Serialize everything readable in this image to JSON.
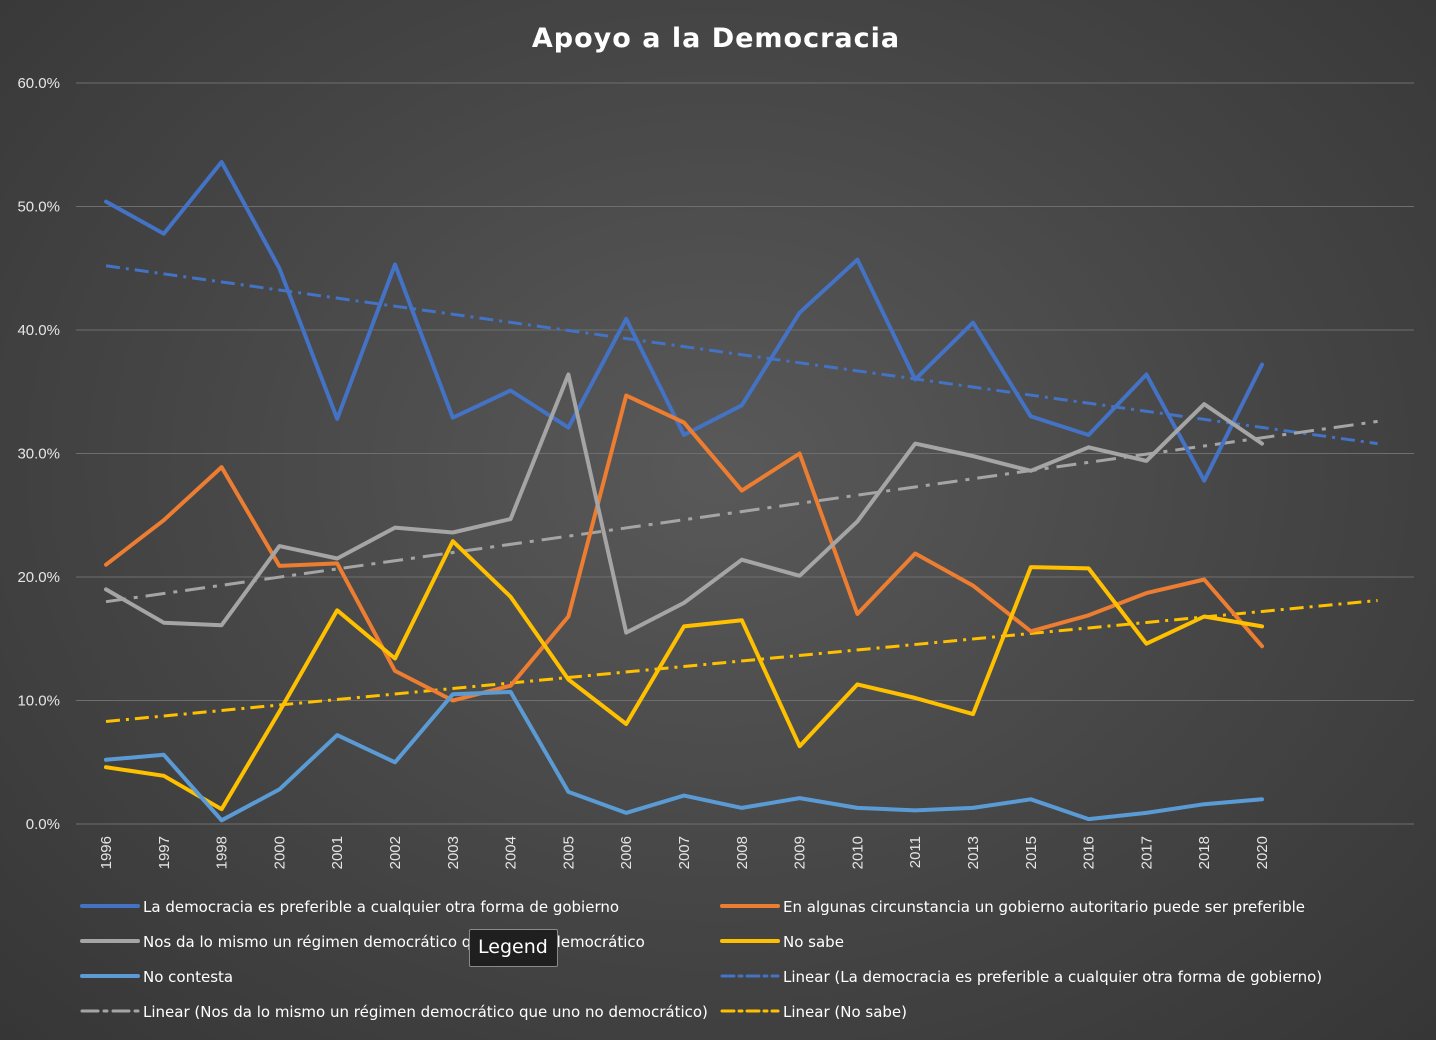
{
  "chart_data": {
    "type": "line",
    "title": "Apoyo a la Democracia",
    "x": [
      "1996",
      "1997",
      "1998",
      "2000",
      "2001",
      "2002",
      "2003",
      "2004",
      "2005",
      "2006",
      "2007",
      "2008",
      "2009",
      "2010",
      "2011",
      "2013",
      "2015",
      "2016",
      "2017",
      "2018",
      "2020"
    ],
    "y_ticks": [
      "0.0%",
      "10.0%",
      "20.0%",
      "30.0%",
      "40.0%",
      "50.0%",
      "60.0%"
    ],
    "ylim": [
      0,
      60
    ],
    "grid": true,
    "legend_position": "bottom",
    "series": [
      {
        "name": "La democracia es preferible a cualquier otra forma de gobierno",
        "color": "#4472C4",
        "values": [
          50.4,
          47.8,
          53.6,
          45.0,
          32.8,
          45.3,
          32.9,
          35.1,
          32.1,
          40.9,
          31.5,
          33.9,
          41.4,
          45.7,
          36.0,
          40.6,
          33.0,
          31.5,
          36.4,
          27.8,
          37.2
        ]
      },
      {
        "name": "En algunas circunstancia un gobierno autoritario puede ser preferible",
        "color": "#ED7D31",
        "values": [
          21.0,
          24.6,
          28.9,
          20.9,
          21.1,
          12.4,
          10.0,
          11.2,
          16.8,
          34.7,
          32.5,
          27.0,
          30.0,
          17.0,
          21.9,
          19.3,
          15.6,
          16.9,
          18.7,
          19.8,
          14.4
        ]
      },
      {
        "name": "Nos da lo mismo un régimen democrático que uno no democrático",
        "color": "#A5A5A5",
        "values": [
          19.0,
          16.3,
          16.1,
          22.5,
          21.5,
          24.0,
          23.6,
          24.7,
          36.4,
          15.5,
          17.9,
          21.4,
          20.1,
          24.5,
          30.8,
          29.8,
          28.6,
          30.5,
          29.4,
          34.0,
          30.8
        ]
      },
      {
        "name": "No sabe",
        "color": "#FFC000",
        "values": [
          4.6,
          3.9,
          1.2,
          9.1,
          17.3,
          13.4,
          22.9,
          18.4,
          11.7,
          8.1,
          16.0,
          16.5,
          6.3,
          11.3,
          10.2,
          8.9,
          20.8,
          20.7,
          14.6,
          16.8,
          16.0
        ]
      },
      {
        "name": "No contesta",
        "color": "#5B9BD5",
        "values": [
          5.2,
          5.6,
          0.3,
          2.8,
          7.2,
          5.0,
          10.5,
          10.7,
          2.6,
          0.9,
          2.3,
          1.3,
          2.1,
          1.3,
          1.1,
          1.3,
          2.0,
          0.4,
          0.9,
          1.6,
          2.0
        ]
      }
    ],
    "trendlines": [
      {
        "name": "Linear (La democracia es preferible a cualquier otra forma de gobierno)",
        "color": "#4472C4",
        "start": 45.2,
        "end": 30.8,
        "dash": "dash-dot"
      },
      {
        "name": "Linear (Nos da lo mismo un régimen democrático que uno no democrático)",
        "color": "#A5A5A5",
        "start": 18.0,
        "end": 32.6,
        "dash": "long-dash-dot"
      },
      {
        "name": "Linear (No sabe)",
        "color": "#FFC000",
        "start": 8.3,
        "end": 18.1,
        "dash": "dash-dot"
      }
    ],
    "tooltip": "Legend"
  }
}
